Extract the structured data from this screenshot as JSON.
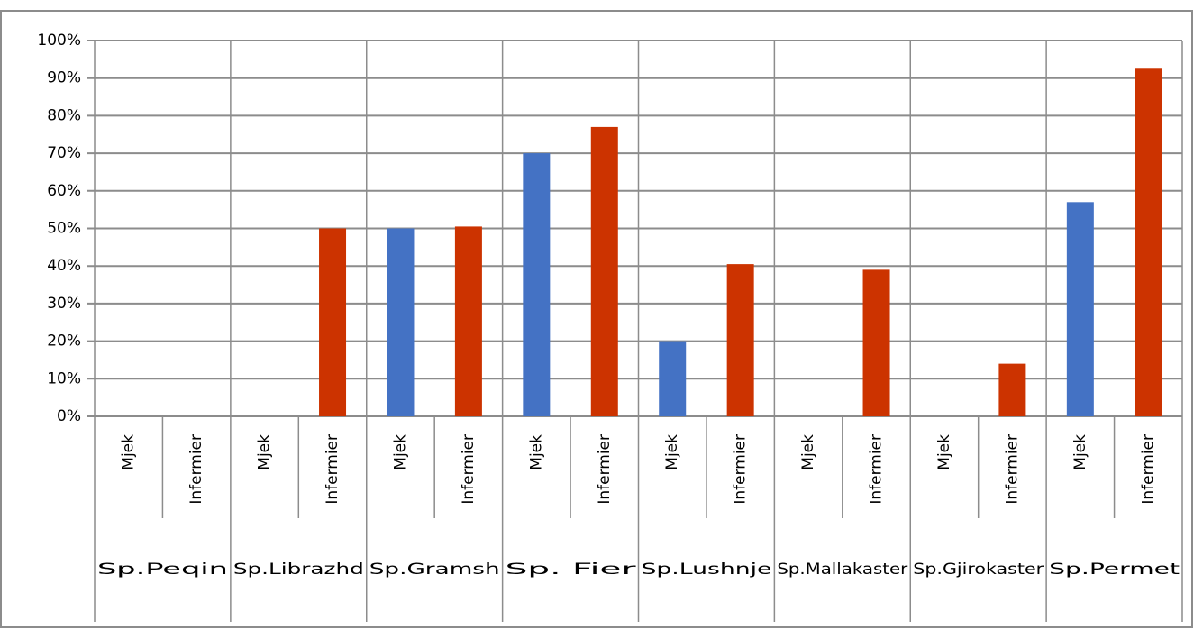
{
  "chart_data": {
    "type": "bar",
    "groups": [
      "Sp.Peqin",
      "Sp.Librazhd",
      "Sp.Gramsh",
      "Sp. Fier",
      "Sp.Lushnje",
      "Sp.Mallakaster",
      "Sp.Gjirokaster",
      "Sp.Permet"
    ],
    "categories": [
      "Mjek",
      "Infermier",
      "Mjek",
      "Infermier",
      "Mjek",
      "Infermier",
      "Mjek",
      "Infermier",
      "Mjek",
      "Infermier",
      "Mjek",
      "Infermier",
      "Mjek",
      "Infermier",
      "Mjek",
      "Infermier"
    ],
    "values": [
      0,
      0,
      0,
      50,
      50,
      50.5,
      70,
      77,
      20,
      40.5,
      0,
      39,
      0,
      14,
      57,
      92.5
    ],
    "bar_colors": [
      "#4472c4",
      "#cc3300"
    ],
    "ylim": [
      0,
      100
    ],
    "yticks": [
      {
        "value": 0,
        "label": "0%"
      },
      {
        "value": 10,
        "label": "10%"
      },
      {
        "value": 20,
        "label": "20%"
      },
      {
        "value": 30,
        "label": "30%"
      },
      {
        "value": 40,
        "label": "40%"
      },
      {
        "value": 50,
        "label": "50%"
      },
      {
        "value": 60,
        "label": "60%"
      },
      {
        "value": 70,
        "label": "70%"
      },
      {
        "value": 80,
        "label": "80%"
      },
      {
        "value": 90,
        "label": "90%"
      },
      {
        "value": 100,
        "label": "100%"
      }
    ],
    "grid": true
  }
}
